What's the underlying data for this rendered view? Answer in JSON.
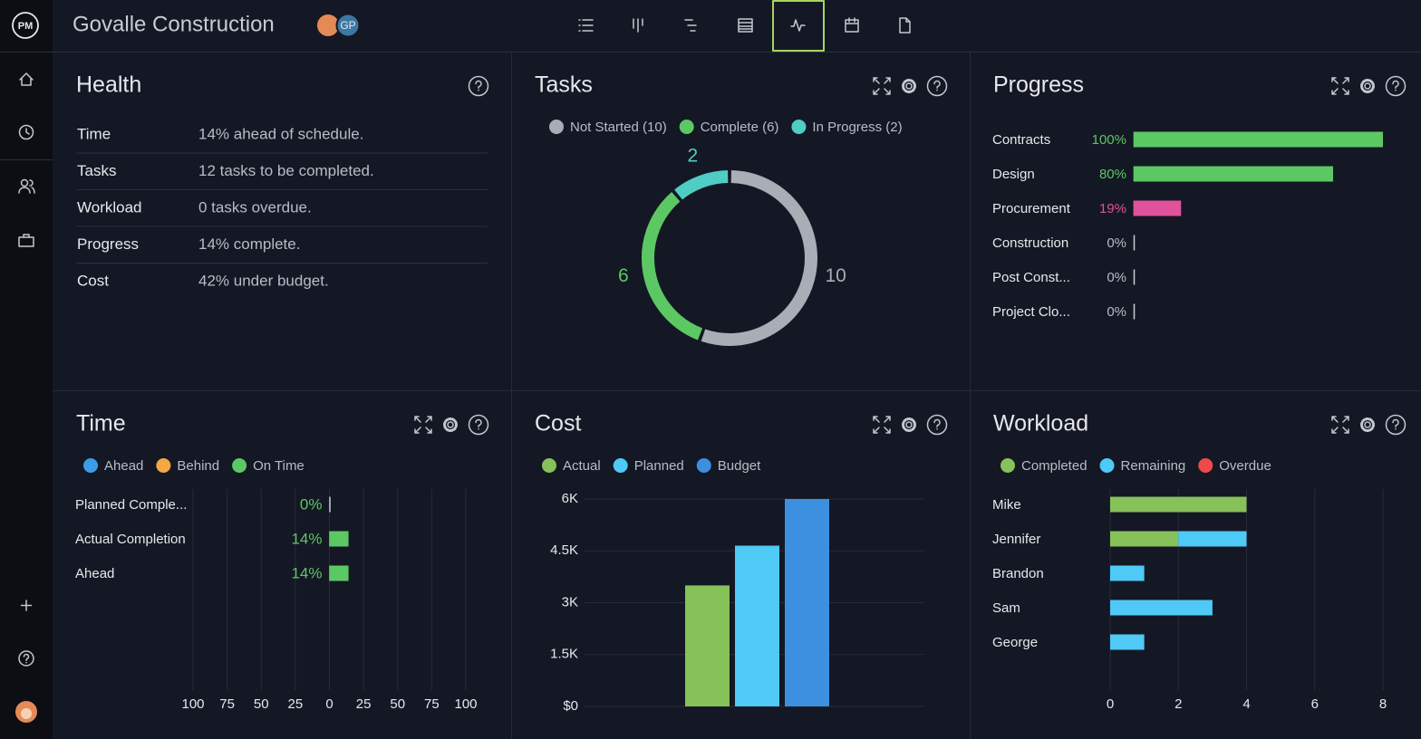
{
  "header": {
    "logo": "PM",
    "title": "Govalle Construction",
    "avatar": "GP"
  },
  "health": {
    "title": "Health",
    "rows": [
      [
        "Time",
        "14% ahead of schedule."
      ],
      [
        "Tasks",
        "12 tasks to be completed."
      ],
      [
        "Workload",
        "0 tasks overdue."
      ],
      [
        "Progress",
        "14% complete."
      ],
      [
        "Cost",
        "42% under budget."
      ]
    ]
  },
  "chart_data": [
    {
      "type": "pie",
      "donut": true,
      "title": "Tasks",
      "categories": [
        "Not Started (10)",
        "Complete (6)",
        "In Progress (2)"
      ],
      "values": [
        10,
        6,
        2
      ],
      "colors": [
        "#a9adb6",
        "#5cc863",
        "#4ecdc4"
      ]
    },
    {
      "type": "bar",
      "orientation": "horizontal",
      "title": "Progress",
      "categories": [
        "Contracts",
        "Design",
        "Procurement",
        "Construction",
        "Post Const...",
        "Project Clo..."
      ],
      "values": [
        100,
        80,
        19,
        0,
        0,
        0
      ],
      "value_labels": [
        "100%",
        "80%",
        "19%",
        "0%",
        "0%",
        "0%"
      ],
      "colors": [
        "#5cc863",
        "#5cc863",
        "#e0529c",
        "#b8bcc6",
        "#b8bcc6",
        "#b8bcc6"
      ],
      "xlim": [
        0,
        100
      ]
    },
    {
      "type": "bar",
      "orientation": "horizontal",
      "title": "Time",
      "legend": [
        {
          "name": "Ahead",
          "color": "#3b9de8"
        },
        {
          "name": "Behind",
          "color": "#f4a742"
        },
        {
          "name": "On Time",
          "color": "#5cc863"
        }
      ],
      "categories": [
        "Planned Comple...",
        "Actual Completion",
        "Ahead"
      ],
      "values": [
        0,
        14,
        14
      ],
      "value_labels": [
        "0%",
        "14%",
        "14%"
      ],
      "color": "#5cc863",
      "xlim": [
        -100,
        100
      ],
      "xticks": [
        {
          "value": -100,
          "label": "100"
        },
        {
          "value": -75,
          "label": "75"
        },
        {
          "value": -50,
          "label": "50"
        },
        {
          "value": -25,
          "label": "25"
        },
        0,
        25,
        50,
        75,
        100
      ],
      "grid": true
    },
    {
      "type": "bar",
      "title": "Cost",
      "series": [
        {
          "name": "Actual",
          "color": "#86c15a",
          "values": [
            3500
          ]
        },
        {
          "name": "Planned",
          "color": "#4fc9f5",
          "values": [
            4650
          ]
        },
        {
          "name": "Budget",
          "color": "#3d8fe0",
          "values": [
            6000
          ]
        }
      ],
      "ylim": [
        0,
        6000
      ],
      "yticks": [
        {
          "value": 0,
          "label": "$0"
        },
        {
          "value": 1500,
          "label": "1.5K"
        },
        {
          "value": 3000,
          "label": "3K"
        },
        {
          "value": 4500,
          "label": "4.5K"
        },
        {
          "value": 6000,
          "label": "6K"
        }
      ],
      "grid": true
    },
    {
      "type": "bar",
      "orientation": "horizontal",
      "stacked": true,
      "title": "Workload",
      "categories": [
        "Mike",
        "Jennifer",
        "Brandon",
        "Sam",
        "George"
      ],
      "series": [
        {
          "name": "Completed",
          "color": "#86c15a",
          "values": [
            4,
            2,
            0,
            0,
            0
          ]
        },
        {
          "name": "Remaining",
          "color": "#4fc9f5",
          "values": [
            0,
            2,
            1,
            3,
            1
          ]
        },
        {
          "name": "Overdue",
          "color": "#ef4a4a",
          "values": [
            0,
            0,
            0,
            0,
            0
          ]
        }
      ],
      "xlim": [
        0,
        8
      ],
      "xticks": [
        0,
        2,
        4,
        6,
        8
      ],
      "grid": true
    }
  ]
}
